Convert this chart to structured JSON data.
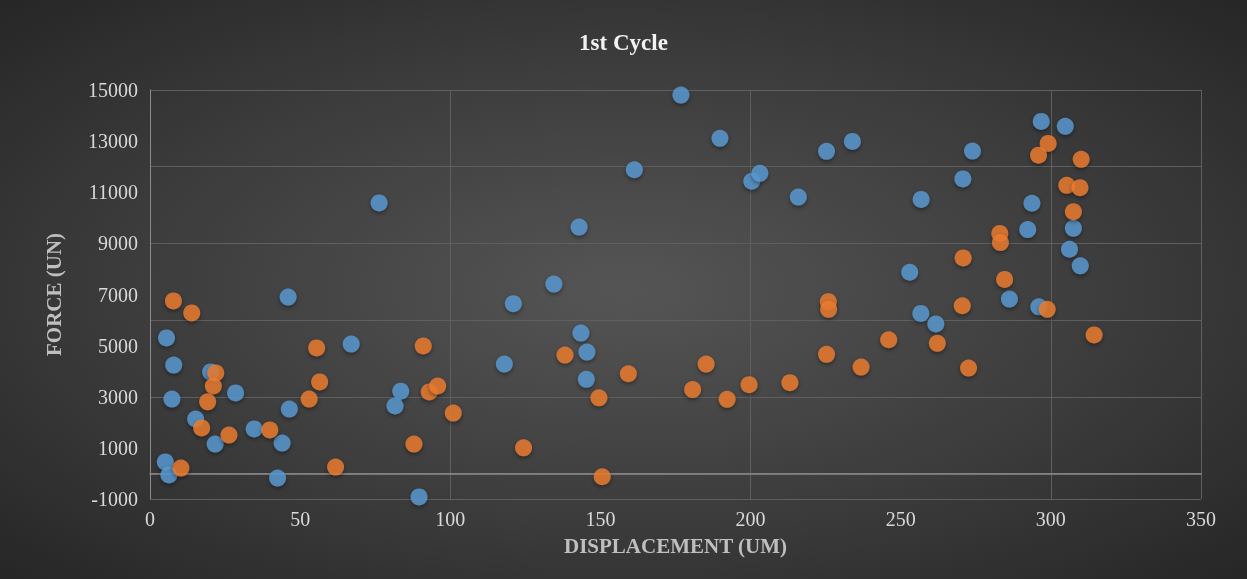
{
  "chart_data": {
    "type": "scatter",
    "title": "1st Cycle",
    "xlabel": "DISPLACEMENT (UM)",
    "ylabel": "FORCE (UN)",
    "xlim": [
      0,
      350
    ],
    "xticks": [
      0,
      50,
      100,
      150,
      200,
      250,
      300,
      350
    ],
    "ylim": [
      -1000,
      15000
    ],
    "yticks": [
      -1000,
      1000,
      3000,
      5000,
      7000,
      9000,
      11000,
      13000,
      15000
    ],
    "grid": true,
    "marker": "circle",
    "series": [
      {
        "color": "#5b9bd5",
        "x": [
          5.5,
          7.9,
          7.3,
          20.2,
          15.2,
          21.7,
          28.5,
          34.7,
          44,
          42.5,
          46.4,
          46,
          5.1,
          6.3,
          67,
          76.3,
          83.5,
          81.6,
          89.6,
          118,
          121,
          134.5,
          142.9,
          143.5,
          145.5,
          145.3,
          161.3,
          176.8,
          189.8,
          200.4,
          203.1,
          215.9,
          225.3,
          233.9,
          253,
          256.7,
          261.7,
          256.8,
          270.7,
          273.9,
          286.2,
          292.3,
          293.7,
          296.8,
          296,
          304.8,
          307.5,
          306.2,
          309.8
        ],
        "values": [
          5300,
          4240,
          2910,
          3970,
          2130,
          1150,
          3150,
          1740,
          1190,
          -180,
          2520,
          6900,
          450,
          -60,
          5060,
          10580,
          3220,
          2640,
          -920,
          4280,
          6640,
          7410,
          9640,
          5490,
          4750,
          3680,
          11880,
          14800,
          13110,
          11430,
          11740,
          10810,
          12600,
          12990,
          7870,
          6260,
          5850,
          10720,
          11520,
          12610,
          6820,
          9540,
          10570,
          13770,
          6520,
          13580,
          9590,
          8770,
          8120
        ]
      },
      {
        "color": "#ed7d31",
        "x": [
          7.8,
          13.9,
          21.9,
          21.1,
          19.2,
          17.2,
          26.3,
          10.3,
          39.9,
          55.5,
          56.5,
          53,
          61.8,
          91,
          93,
          95.8,
          101,
          87.9,
          138.2,
          159.3,
          149.5,
          124.4,
          150.6,
          180.7,
          185.2,
          192.2,
          199.5,
          213.1,
          225.3,
          225.9,
          226,
          246,
          236.8,
          262.2,
          272.6,
          270.5,
          270.8,
          283,
          283.2,
          284.6,
          298.8,
          314.4,
          299.1,
          295.9,
          310.1,
          305.3,
          309.7,
          307.5
        ],
        "values": [
          6750,
          6280,
          3930,
          3420,
          2800,
          1780,
          1500,
          210,
          1700,
          4910,
          3580,
          2910,
          250,
          4990,
          3190,
          3420,
          2360,
          1150,
          4630,
          3900,
          2960,
          1000,
          -130,
          3280,
          4280,
          2900,
          3470,
          3550,
          4660,
          6720,
          6420,
          5230,
          4160,
          5090,
          4120,
          6560,
          8430,
          9390,
          9030,
          7590,
          6420,
          5420,
          12910,
          12450,
          12290,
          11270,
          11180,
          10240
        ]
      }
    ]
  }
}
